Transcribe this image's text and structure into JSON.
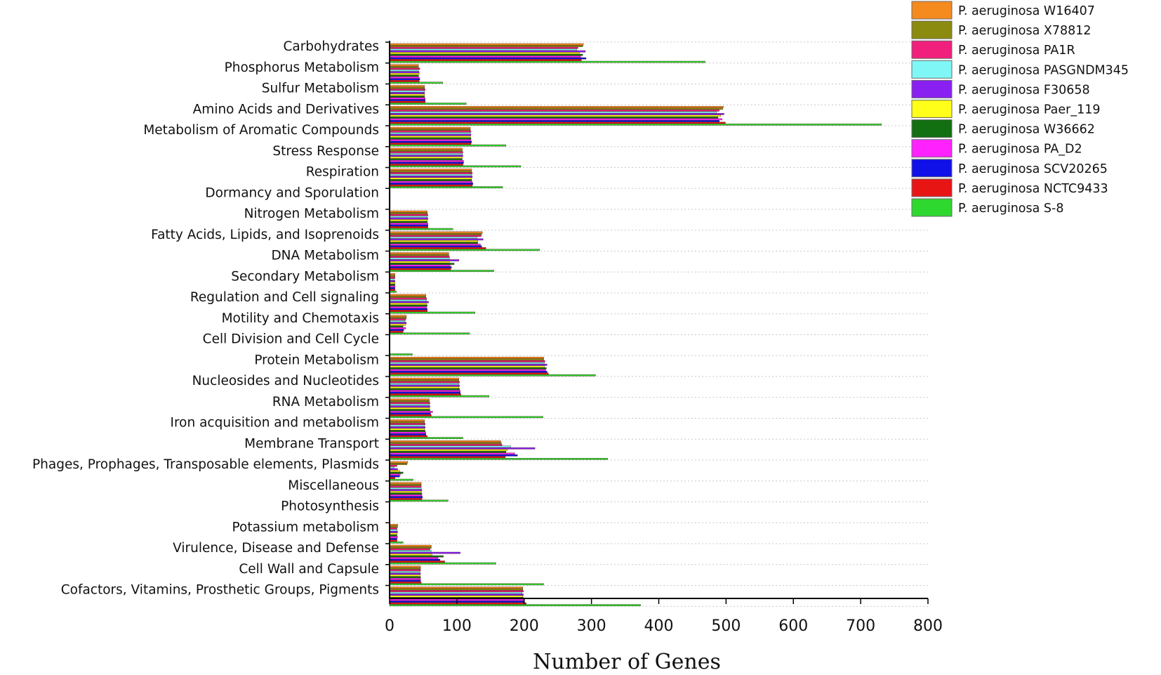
{
  "chart_data": {
    "type": "bar",
    "orientation": "horizontal",
    "title": "",
    "xlabel": "Number of Genes",
    "ylabel": "",
    "xlim": [
      0,
      800
    ],
    "xticks": [
      "0",
      "100",
      "200",
      "300",
      "400",
      "500",
      "600",
      "700",
      "800"
    ],
    "grid": "horizontal dotted",
    "legend_position": "top-right",
    "categories": [
      "Carbohydrates",
      "Phosphorus Metabolism",
      "Sulfur Metabolism",
      "Amino Acids and Derivatives",
      "Metabolism of Aromatic Compounds",
      "Stress Response",
      "Respiration",
      "Dormancy and Sporulation",
      "Nitrogen Metabolism",
      "Fatty Acids, Lipids, and Isoprenoids",
      "DNA Metabolism",
      "Secondary Metabolism",
      "Regulation and Cell signaling",
      "Motility and Chemotaxis",
      "Cell Division and Cell Cycle",
      "Protein Metabolism",
      "Nucleosides and Nucleotides",
      "RNA Metabolism",
      "Iron acquisition and metabolism",
      "Membrane Transport",
      "Phages, Prophages, Transposable elements, Plasmids",
      "Miscellaneous",
      "Photosynthesis",
      "Potassium metabolism",
      "Virulence, Disease and Defense",
      "Cell Wall and Capsule",
      "Cofactors, Vitamins, Prosthetic Groups, Pigments"
    ],
    "series": [
      {
        "name": "P. aeruginosa W16407",
        "color": "#f58a1f",
        "values": [
          288,
          43,
          52,
          496,
          120,
          108,
          122,
          1,
          56,
          138,
          88,
          8,
          54,
          25,
          0,
          229,
          103,
          59,
          52,
          165,
          27,
          47,
          0,
          12,
          62,
          46,
          198
        ]
      },
      {
        "name": "P. aeruginosa X78812",
        "color": "#8b8b10",
        "values": [
          287,
          43,
          52,
          495,
          120,
          108,
          122,
          1,
          56,
          137,
          88,
          8,
          54,
          25,
          0,
          229,
          103,
          59,
          52,
          166,
          26,
          47,
          0,
          12,
          62,
          46,
          198
        ]
      },
      {
        "name": "P. aeruginosa PA1R",
        "color": "#f0207c",
        "values": [
          280,
          45,
          53,
          490,
          121,
          109,
          123,
          1,
          57,
          136,
          89,
          8,
          55,
          24,
          0,
          231,
          104,
          60,
          53,
          167,
          11,
          47,
          0,
          11,
          60,
          46,
          199
        ]
      },
      {
        "name": "P. aeruginosa PASGNDM345",
        "color": "#80f7f7",
        "values": [
          278,
          43,
          52,
          486,
          120,
          108,
          122,
          1,
          56,
          130,
          89,
          7,
          55,
          23,
          0,
          230,
          103,
          59,
          52,
          180,
          7,
          47,
          0,
          11,
          62,
          45,
          197
        ]
      },
      {
        "name": "P. aeruginosa F30658",
        "color": "#8a1ff2",
        "values": [
          291,
          44,
          52,
          497,
          121,
          109,
          123,
          1,
          57,
          139,
          103,
          8,
          58,
          25,
          0,
          234,
          104,
          60,
          53,
          216,
          12,
          48,
          0,
          12,
          105,
          46,
          199
        ]
      },
      {
        "name": "P. aeruginosa Paer_119",
        "color": "#ffff1a",
        "values": [
          282,
          44,
          52,
          492,
          120,
          108,
          122,
          1,
          56,
          131,
          89,
          8,
          55,
          24,
          0,
          230,
          103,
          59,
          52,
          175,
          15,
          47,
          0,
          11,
          63,
          45,
          198
        ]
      },
      {
        "name": "P. aeruginosa W36662",
        "color": "#127012",
        "values": [
          287,
          43,
          52,
          488,
          121,
          108,
          122,
          1,
          56,
          131,
          96,
          8,
          56,
          20,
          0,
          233,
          104,
          60,
          53,
          173,
          20,
          48,
          0,
          11,
          80,
          46,
          199
        ]
      },
      {
        "name": "P. aeruginosa PA_D2",
        "color": "#ff22ff",
        "values": [
          284,
          44,
          53,
          494,
          121,
          110,
          123,
          1,
          57,
          135,
          90,
          8,
          55,
          24,
          0,
          232,
          105,
          64,
          54,
          186,
          16,
          48,
          0,
          12,
          72,
          46,
          200
        ]
      },
      {
        "name": "P. aeruginosa SCV20265",
        "color": "#1010e8",
        "values": [
          292,
          45,
          53,
          490,
          122,
          110,
          124,
          1,
          57,
          137,
          92,
          8,
          56,
          21,
          0,
          234,
          105,
          61,
          54,
          190,
          15,
          49,
          0,
          11,
          75,
          46,
          200
        ]
      },
      {
        "name": "P. aeruginosa NCTC9433",
        "color": "#e81515",
        "values": [
          285,
          44,
          53,
          499,
          121,
          109,
          123,
          1,
          57,
          143,
          91,
          8,
          56,
          20,
          0,
          236,
          106,
          62,
          56,
          172,
          8,
          48,
          0,
          11,
          82,
          47,
          203
        ]
      },
      {
        "name": "P. aeruginosa S-8",
        "color": "#2ed82e",
        "values": [
          469,
          79,
          114,
          731,
          173,
          195,
          168,
          1,
          94,
          223,
          155,
          10,
          127,
          119,
          34,
          306,
          148,
          228,
          109,
          324,
          35,
          87,
          0,
          20,
          158,
          229,
          373
        ]
      }
    ]
  }
}
